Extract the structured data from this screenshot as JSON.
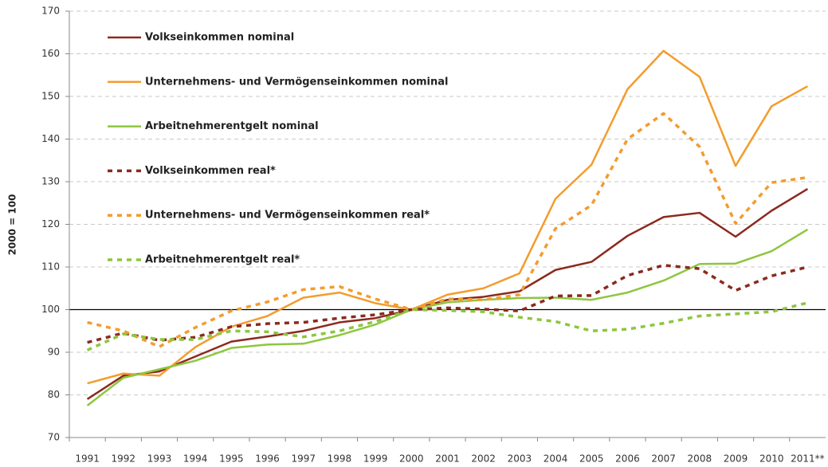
{
  "chart_data": {
    "type": "line",
    "ylabel": "2000 = 100",
    "categories": [
      "1991",
      "1992",
      "1993",
      "1994",
      "1995",
      "1996",
      "1997",
      "1998",
      "1999",
      "2000",
      "2001",
      "2002",
      "2003",
      "2004",
      "2005",
      "2006",
      "2007",
      "2008",
      "2009",
      "2010",
      "2011**"
    ],
    "series": [
      {
        "name": "Volkseinkommen nominal",
        "color": "#8b2a1e",
        "dashed": false,
        "values": [
          79,
          84.5,
          85.5,
          89,
          92.5,
          93.7,
          95,
          97,
          98,
          100,
          102.3,
          103,
          104.3,
          109.3,
          111.2,
          117.3,
          121.7,
          122.7,
          117.1,
          123.2,
          128.3
        ]
      },
      {
        "name": "Unternehmens- und Vermögenseinkommen nominal",
        "color": "#f39c2d",
        "dashed": false,
        "values": [
          82.7,
          85,
          84.5,
          91.2,
          96,
          98.5,
          102.8,
          104,
          101.5,
          100,
          103.5,
          105,
          108.5,
          126,
          134,
          151.7,
          160.7,
          154.6,
          133.7,
          147.7,
          152.4
        ]
      },
      {
        "name": "Arbeitnehmerentgelt nominal",
        "color": "#8dc63f",
        "dashed": false,
        "values": [
          77.5,
          84,
          86,
          88,
          91,
          91.8,
          92,
          94,
          96.5,
          100,
          101.7,
          102.3,
          102.7,
          102.8,
          102.3,
          104,
          106.8,
          110.7,
          110.8,
          113.7,
          118.8
        ]
      },
      {
        "name": "Volkseinkommen real*",
        "color": "#8b2a1e",
        "dashed": true,
        "values": [
          92.3,
          94.5,
          92.8,
          93.5,
          96,
          96.7,
          97,
          98,
          98.8,
          100,
          100.4,
          100.1,
          99.7,
          103.2,
          103.3,
          108,
          110.4,
          109.6,
          104.5,
          107.9,
          110
        ]
      },
      {
        "name": "Unternehmens- und Vermögenseinkommen real*",
        "color": "#f39c2d",
        "dashed": true,
        "values": [
          97,
          95,
          91.3,
          95.8,
          99.7,
          101.8,
          104.7,
          105.4,
          102.5,
          100,
          102.5,
          102.3,
          103.5,
          119,
          124.5,
          140,
          146,
          138.2,
          120.2,
          129.8,
          131
        ]
      },
      {
        "name": "Arbeitnehmerentgelt real*",
        "color": "#8dc63f",
        "dashed": true,
        "values": [
          90.5,
          94.3,
          93,
          93,
          95,
          94.8,
          93.6,
          95,
          97.2,
          100,
          99.8,
          99.5,
          98.2,
          97.2,
          95,
          95.4,
          96.8,
          98.5,
          99,
          99.5,
          101.6
        ]
      }
    ],
    "ylim": [
      70,
      170
    ],
    "yticks": [
      70,
      80,
      90,
      100,
      110,
      120,
      130,
      140,
      150,
      160,
      170
    ],
    "grid": true,
    "baseline": 100,
    "legend": "upper left"
  }
}
